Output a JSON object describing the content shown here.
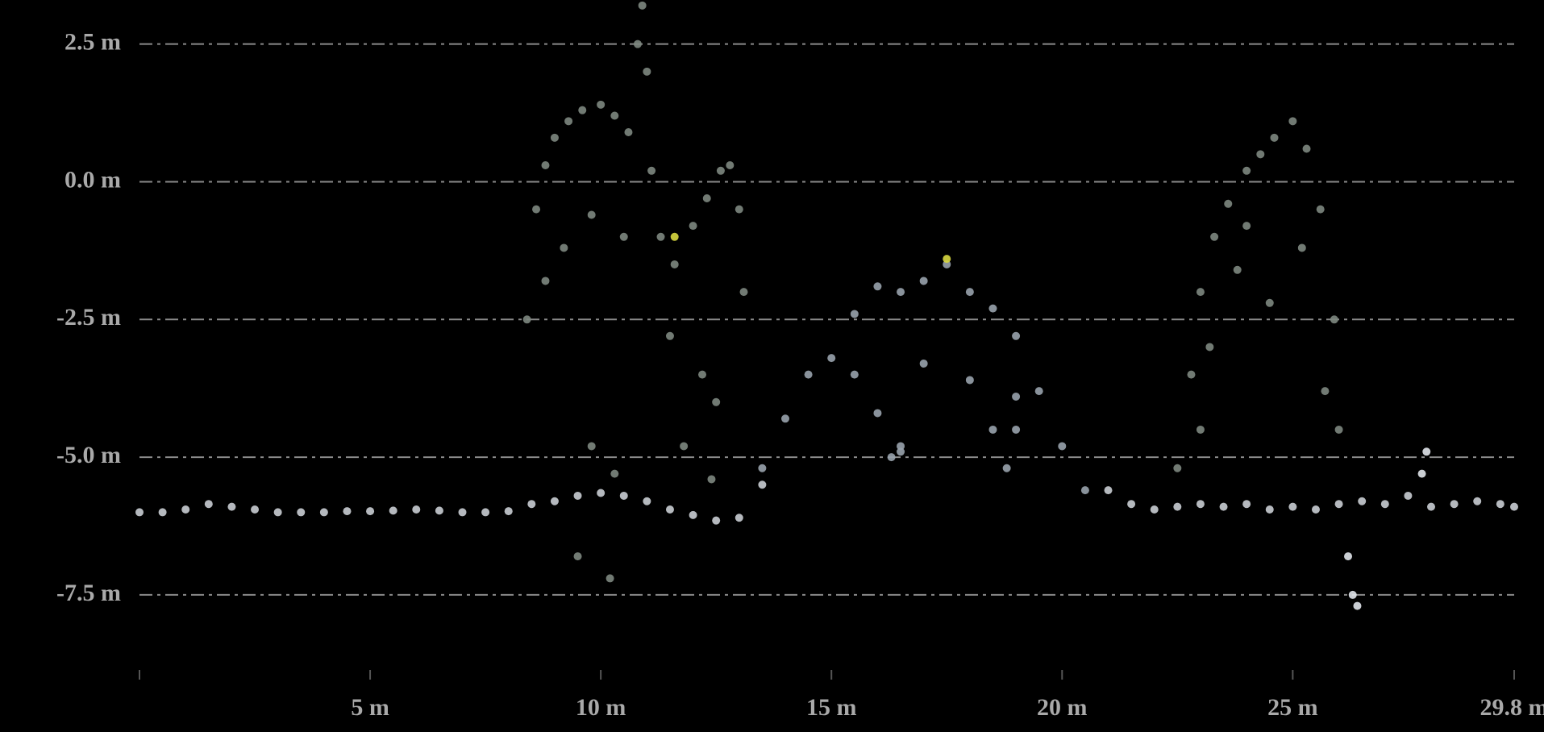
{
  "chart_data": {
    "type": "scatter",
    "xlim": [
      0,
      29.8
    ],
    "ylim": [
      -8.95,
      3.3
    ],
    "xticks": [
      {
        "value": 5,
        "label": "5 m"
      },
      {
        "value": 10,
        "label": "10 m"
      },
      {
        "value": 15,
        "label": "15 m"
      },
      {
        "value": 20,
        "label": "20 m"
      },
      {
        "value": 25,
        "label": "25 m"
      },
      {
        "value": 29.8,
        "label": "29.8 m"
      }
    ],
    "yticks": [
      {
        "value": 2.5,
        "label": "2.5 m"
      },
      {
        "value": 0,
        "label": "0.0 m"
      },
      {
        "value": -2.5,
        "label": "-2.5 m"
      },
      {
        "value": -5,
        "label": "-5.0 m"
      },
      {
        "value": -7.5,
        "label": "-7.5 m"
      }
    ],
    "grid": true,
    "series": [
      {
        "color": "#c9cdd3",
        "x": [
          0,
          0.5,
          1,
          1.5,
          2,
          2.5,
          3,
          3.5,
          4,
          4.5,
          5,
          5.5,
          6,
          6.5,
          7,
          7.5,
          8,
          8.5,
          9,
          9.5,
          10,
          10.5,
          11,
          11.5,
          12,
          12.5,
          13,
          13.5,
          21,
          21.5,
          22,
          22.5,
          23,
          23.5,
          24,
          24.5,
          25,
          25.5,
          26,
          26.5,
          27,
          27.5,
          28,
          28.5,
          29,
          29.5,
          29.8
        ],
        "y": [
          -6.0,
          -6.0,
          -5.95,
          -5.85,
          -5.9,
          -5.95,
          -6.0,
          -6.0,
          -6.0,
          -5.98,
          -5.98,
          -5.97,
          -5.95,
          -5.97,
          -6.0,
          -6.0,
          -5.98,
          -5.85,
          -5.8,
          -5.7,
          -5.65,
          -5.7,
          -5.8,
          -5.95,
          -6.05,
          -6.15,
          -6.1,
          -5.5,
          -5.6,
          -5.85,
          -5.95,
          -5.9,
          -5.85,
          -5.9,
          -5.85,
          -5.95,
          -5.9,
          -5.95,
          -5.85,
          -5.8,
          -5.85,
          -5.7,
          -5.9,
          -5.85,
          -5.8,
          -5.85,
          -5.9
        ]
      },
      {
        "color": "#98a2ac",
        "x": [
          13.5,
          14,
          14.5,
          15,
          15.5,
          16,
          16.5,
          17,
          17.5,
          18,
          18.5,
          19,
          19.5,
          20,
          20.5,
          15.5,
          16,
          16.5,
          17,
          18,
          18.5,
          19,
          16.3,
          16.5,
          18.8,
          19
        ],
        "y": [
          -5.2,
          -4.3,
          -3.5,
          -3.2,
          -2.4,
          -1.9,
          -2.0,
          -1.8,
          -1.5,
          -2.0,
          -2.3,
          -2.8,
          -3.8,
          -4.8,
          -5.6,
          -3.5,
          -4.2,
          -4.8,
          -3.3,
          -3.6,
          -4.5,
          -3.9,
          -5.0,
          -4.9,
          -5.2,
          -4.5
        ]
      },
      {
        "color": "#7d877f",
        "x": [
          8.4,
          8.6,
          8.8,
          9,
          9.3,
          9.6,
          10,
          10.3,
          10.6,
          10.8,
          10.9,
          11,
          11.1,
          11.3,
          11.6,
          12,
          12.3,
          12.6,
          12.8,
          13,
          13.1,
          8.8,
          9.2,
          9.8,
          10.5,
          11.5,
          12.2,
          12.5,
          11.8,
          12.4,
          9.5,
          10.2,
          22.5,
          22.8,
          23,
          23.3,
          23.6,
          24,
          24.3,
          24.6,
          25,
          25.3,
          25.6,
          25.9,
          26,
          23.2,
          23.8,
          24.5,
          25.2,
          25.7,
          24,
          23,
          10.3,
          9.8
        ],
        "y": [
          -2.5,
          -0.5,
          0.3,
          0.8,
          1.1,
          1.3,
          1.4,
          1.2,
          0.9,
          2.5,
          3.2,
          2.0,
          0.2,
          -1.0,
          -1.5,
          -0.8,
          -0.3,
          0.2,
          0.3,
          -0.5,
          -2.0,
          -1.8,
          -1.2,
          -0.6,
          -1.0,
          -2.8,
          -3.5,
          -4.0,
          -4.8,
          -5.4,
          -6.8,
          -7.2,
          -5.2,
          -3.5,
          -2.0,
          -1.0,
          -0.4,
          0.2,
          0.5,
          0.8,
          1.1,
          0.6,
          -0.5,
          -2.5,
          -4.5,
          -3.0,
          -1.6,
          -2.2,
          -1.2,
          -3.8,
          -0.8,
          -4.5,
          -5.3,
          -4.8
        ]
      },
      {
        "color": "#e0e4ea",
        "x": [
          26.2,
          26.3,
          26.4,
          27.8,
          27.9
        ],
        "y": [
          -6.8,
          -7.5,
          -7.7,
          -5.3,
          -4.9
        ]
      },
      {
        "color": "#d8d840",
        "x": [
          11.6,
          17.5
        ],
        "y": [
          -1.0,
          -1.4
        ]
      }
    ]
  }
}
